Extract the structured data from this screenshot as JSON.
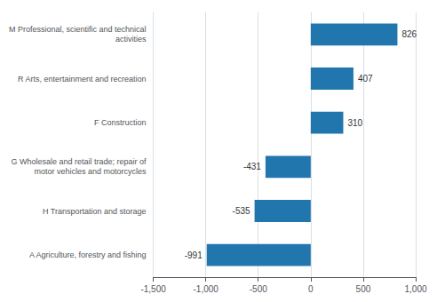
{
  "chart_data": {
    "type": "bar",
    "orientation": "horizontal",
    "categories": [
      "A Agriculture, forestry and fishing",
      "H Transportation and storage",
      "G Wholesale and retail trade; repair of\nmotor vehicles and motorcycles",
      "F Construction",
      "R Arts, entertainment and recreation",
      "M Professional, scientific and technical\nactivities"
    ],
    "values": [
      -991,
      -535,
      -431,
      310,
      407,
      826
    ],
    "color": "#2176ae",
    "xlim": [
      -1500,
      1000
    ],
    "xticks": [
      {
        "value": -1500,
        "label": "-1,500"
      },
      {
        "value": -1000,
        "label": "-1,000"
      },
      -500,
      0,
      500,
      {
        "value": 1000,
        "label": "1,000"
      }
    ],
    "grid": true,
    "data_labels": true
  }
}
